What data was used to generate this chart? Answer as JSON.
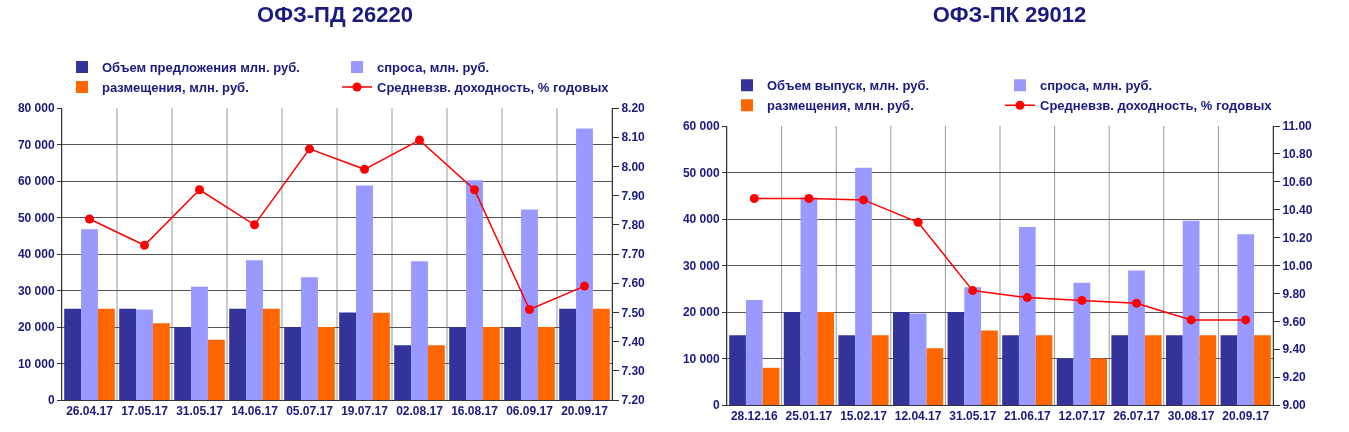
{
  "chart_data": [
    {
      "type": "bar",
      "title": "ОФЗ-ПД 26220",
      "categories": [
        "26.04.17",
        "17.05.17",
        "31.05.17",
        "14.06.17",
        "05.07.17",
        "19.07.17",
        "02.08.17",
        "16.08.17",
        "06.09.17",
        "20.09.17"
      ],
      "series": [
        {
          "name": "Объем предложения млн. руб.",
          "color": "#333399",
          "values": [
            25000,
            25000,
            20000,
            25000,
            20000,
            24000,
            15000,
            20000,
            20000,
            25000
          ]
        },
        {
          "name": "спроса, млн. руб.",
          "color": "#9999ff",
          "values": [
            46800,
            24800,
            31000,
            38300,
            33600,
            58800,
            38000,
            60200,
            52200,
            74400
          ]
        },
        {
          "name": "размещения, млн. руб.",
          "color": "#ff6600",
          "values": [
            25000,
            21000,
            16500,
            25000,
            20000,
            23900,
            15000,
            20000,
            20000,
            25000
          ]
        },
        {
          "name": "Средневзв. доходность, % годовых",
          "color": "#ff0000",
          "type": "line",
          "axis": "y2",
          "marker": "circle",
          "values": [
            7.82,
            7.73,
            7.92,
            7.8,
            8.06,
            7.99,
            8.09,
            7.92,
            7.51,
            7.59
          ]
        }
      ],
      "ylim": [
        0,
        80000
      ],
      "yticks": [
        {
          "value": 0,
          "label": "0"
        },
        {
          "value": 10000,
          "label": "10 000"
        },
        {
          "value": 20000,
          "label": "20 000"
        },
        {
          "value": 30000,
          "label": "30 000"
        },
        {
          "value": 40000,
          "label": "40 000"
        },
        {
          "value": 50000,
          "label": "50 000"
        },
        {
          "value": 60000,
          "label": "60 000"
        },
        {
          "value": 70000,
          "label": "70 000"
        },
        {
          "value": 80000,
          "label": "80 000"
        }
      ],
      "y2lim": [
        7.2,
        8.2
      ],
      "y2ticks": [
        {
          "value": 7.2,
          "label": "7.20"
        },
        {
          "value": 7.3,
          "label": "7.30"
        },
        {
          "value": 7.4,
          "label": "7.40"
        },
        {
          "value": 7.5,
          "label": "7.50"
        },
        {
          "value": 7.6,
          "label": "7.60"
        },
        {
          "value": 7.7,
          "label": "7.70"
        },
        {
          "value": 7.8,
          "label": "7.80"
        },
        {
          "value": 7.9,
          "label": "7.90"
        },
        {
          "value": 8.0,
          "label": "8.00"
        },
        {
          "value": 8.1,
          "label": "8.10"
        },
        {
          "value": 8.2,
          "label": "8.20"
        }
      ],
      "grid": true,
      "legend": "top"
    },
    {
      "type": "bar",
      "title": "ОФЗ-ПК 29012",
      "categories": [
        "28.12.16",
        "25.01.17",
        "15.02.17",
        "12.04.17",
        "31.05.17",
        "21.06.17",
        "12.07.17",
        "26.07.17",
        "30.08.17",
        "20.09.17"
      ],
      "series": [
        {
          "name": "Объем выпуск, млн. руб.",
          "color": "#333399",
          "values": [
            15000,
            20000,
            15000,
            20000,
            20000,
            15000,
            10000,
            15000,
            15000,
            15000
          ]
        },
        {
          "name": "спроса, млн. руб.",
          "color": "#9999ff",
          "values": [
            22600,
            44600,
            51000,
            19700,
            25300,
            38300,
            26300,
            28900,
            39600,
            36700
          ]
        },
        {
          "name": "размещения, млн. руб.",
          "color": "#ff6600",
          "values": [
            8000,
            20000,
            15000,
            12200,
            16000,
            15000,
            10000,
            15000,
            15000,
            15000
          ]
        },
        {
          "name": "Средневзв. доходность, % годовых",
          "color": "#ff0000",
          "type": "line",
          "axis": "y2",
          "marker": "circle",
          "values": [
            10.48,
            10.48,
            10.47,
            10.31,
            9.82,
            9.77,
            9.75,
            9.73,
            9.61,
            9.61
          ]
        }
      ],
      "ylim": [
        0,
        60000
      ],
      "yticks": [
        {
          "value": 0,
          "label": "0"
        },
        {
          "value": 10000,
          "label": "10 000"
        },
        {
          "value": 20000,
          "label": "20 000"
        },
        {
          "value": 30000,
          "label": "30 000"
        },
        {
          "value": 40000,
          "label": "40 000"
        },
        {
          "value": 50000,
          "label": "50 000"
        },
        {
          "value": 60000,
          "label": "60 000"
        }
      ],
      "y2lim": [
        9.0,
        11.0
      ],
      "y2ticks": [
        {
          "value": 9.0,
          "label": "9.00"
        },
        {
          "value": 9.2,
          "label": "9.20"
        },
        {
          "value": 9.4,
          "label": "9.40"
        },
        {
          "value": 9.6,
          "label": "9.60"
        },
        {
          "value": 9.8,
          "label": "9.80"
        },
        {
          "value": 10.0,
          "label": "10.00"
        },
        {
          "value": 10.2,
          "label": "10.20"
        },
        {
          "value": 10.4,
          "label": "10.40"
        },
        {
          "value": 10.6,
          "label": "10.60"
        },
        {
          "value": 10.8,
          "label": "10.80"
        },
        {
          "value": 11.0,
          "label": "11.00"
        }
      ],
      "grid": true,
      "legend": "top"
    }
  ]
}
